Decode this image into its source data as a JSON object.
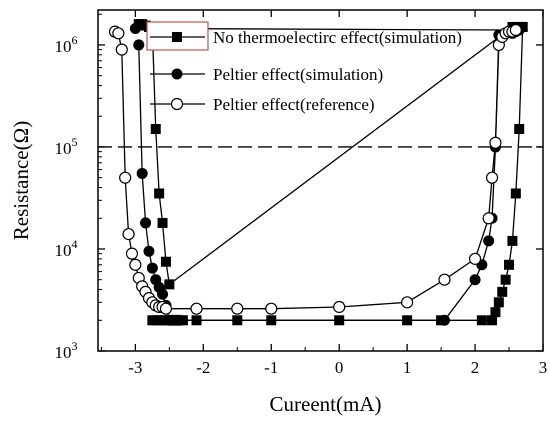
{
  "chart_data": {
    "type": "scatter",
    "title": "",
    "xlabel": "Cureent(mA)",
    "ylabel": "Resistance(Ω)",
    "x_ticks": [
      -3,
      -2,
      -1,
      0,
      1,
      2,
      3
    ],
    "y_ticks": [
      {
        "value": 1000,
        "label": "10",
        "exp": "3"
      },
      {
        "value": 10000,
        "label": "10",
        "exp": "4"
      },
      {
        "value": 100000,
        "label": "10",
        "exp": "5"
      },
      {
        "value": 1000000,
        "label": "10",
        "exp": "6"
      }
    ],
    "xlim": [
      -3.55,
      3.0
    ],
    "ylim": [
      1000,
      2200000
    ],
    "y_scale": "log",
    "grid": false,
    "legend_position": "top-right",
    "reference_line": {
      "value": 100000,
      "style": "dashed"
    },
    "series": [
      {
        "name": "No thermoelectirc effect(simulation)",
        "marker": "filled-square",
        "x": [
          -2.75,
          -2.7,
          -2.65,
          -2.6,
          -2.55,
          -2.5,
          -2.45,
          -2.4,
          -2.35,
          -2.3,
          -2.1,
          -1.5,
          -1.0,
          0.0,
          1.0,
          1.5,
          2.1,
          2.25,
          2.3,
          2.35,
          2.4,
          2.45,
          2.5,
          2.55,
          2.6,
          2.65,
          2.7
        ],
        "y": [
          2000,
          2000,
          2000,
          2000,
          2000,
          2000,
          2000,
          2000,
          2000,
          2000,
          2000,
          2000,
          2000,
          2000,
          2000,
          2000,
          2000,
          2000,
          2400,
          3000,
          3800,
          5000,
          7000,
          12000,
          35000,
          150000,
          1500000
        ],
        "return_x": [
          2.7,
          2.65,
          2.6,
          2.55,
          -2.5,
          -2.55,
          -2.6,
          -2.65,
          -2.7,
          -2.75,
          -2.8,
          -2.85,
          -2.9,
          -2.95
        ],
        "return_y": [
          1500000,
          1500000,
          1500000,
          1500000,
          4500,
          7500,
          18000,
          35000,
          150000,
          1400000,
          1500000,
          1550000,
          1600000,
          1600000
        ]
      },
      {
        "name": "Peltier effect(simulation)",
        "marker": "filled-circle",
        "x": [
          -2.95,
          -2.9,
          -2.85,
          -2.8,
          -2.75,
          -2.7,
          -2.65,
          -2.6,
          -2.55,
          -2.5,
          -2.45,
          -2.4,
          -2.35,
          1.55,
          2.0,
          2.1,
          2.2,
          2.25,
          2.3,
          2.35
        ],
        "y": [
          1000000,
          55000,
          18000,
          9500,
          6500,
          5000,
          4200,
          3600,
          2800,
          2000,
          2000,
          2000,
          2000,
          2000,
          5000,
          7000,
          12000,
          20000,
          100000,
          1250000
        ],
        "return_x": [
          2.55,
          2.6,
          2.65,
          -3.0
        ],
        "return_y": [
          1300000,
          1350000,
          1400000,
          1450000
        ]
      },
      {
        "name": "Peltier effect(reference)",
        "marker": "open-circle",
        "x": [
          -3.3,
          -3.25,
          -3.2,
          -3.15,
          -3.1,
          -3.05,
          -3.0,
          -2.95,
          -2.9,
          -2.85,
          -2.8,
          -2.75,
          -2.7,
          -2.65,
          -2.6,
          -2.55,
          -2.1,
          -1.5,
          -1.0,
          0.0,
          1.0,
          1.55,
          2.0,
          2.2,
          2.25,
          2.3,
          2.35,
          2.4,
          2.45,
          2.5,
          2.55,
          2.6
        ],
        "y": [
          1350000,
          1300000,
          900000,
          50000,
          14000,
          9000,
          7000,
          5200,
          4300,
          3800,
          3300,
          3000,
          2800,
          2700,
          2700,
          2600,
          2600,
          2600,
          2600,
          2700,
          3000,
          5000,
          8000,
          20000,
          50000,
          110000,
          1000000,
          1200000,
          1300000,
          1350000,
          1350000,
          1400000
        ]
      }
    ]
  }
}
